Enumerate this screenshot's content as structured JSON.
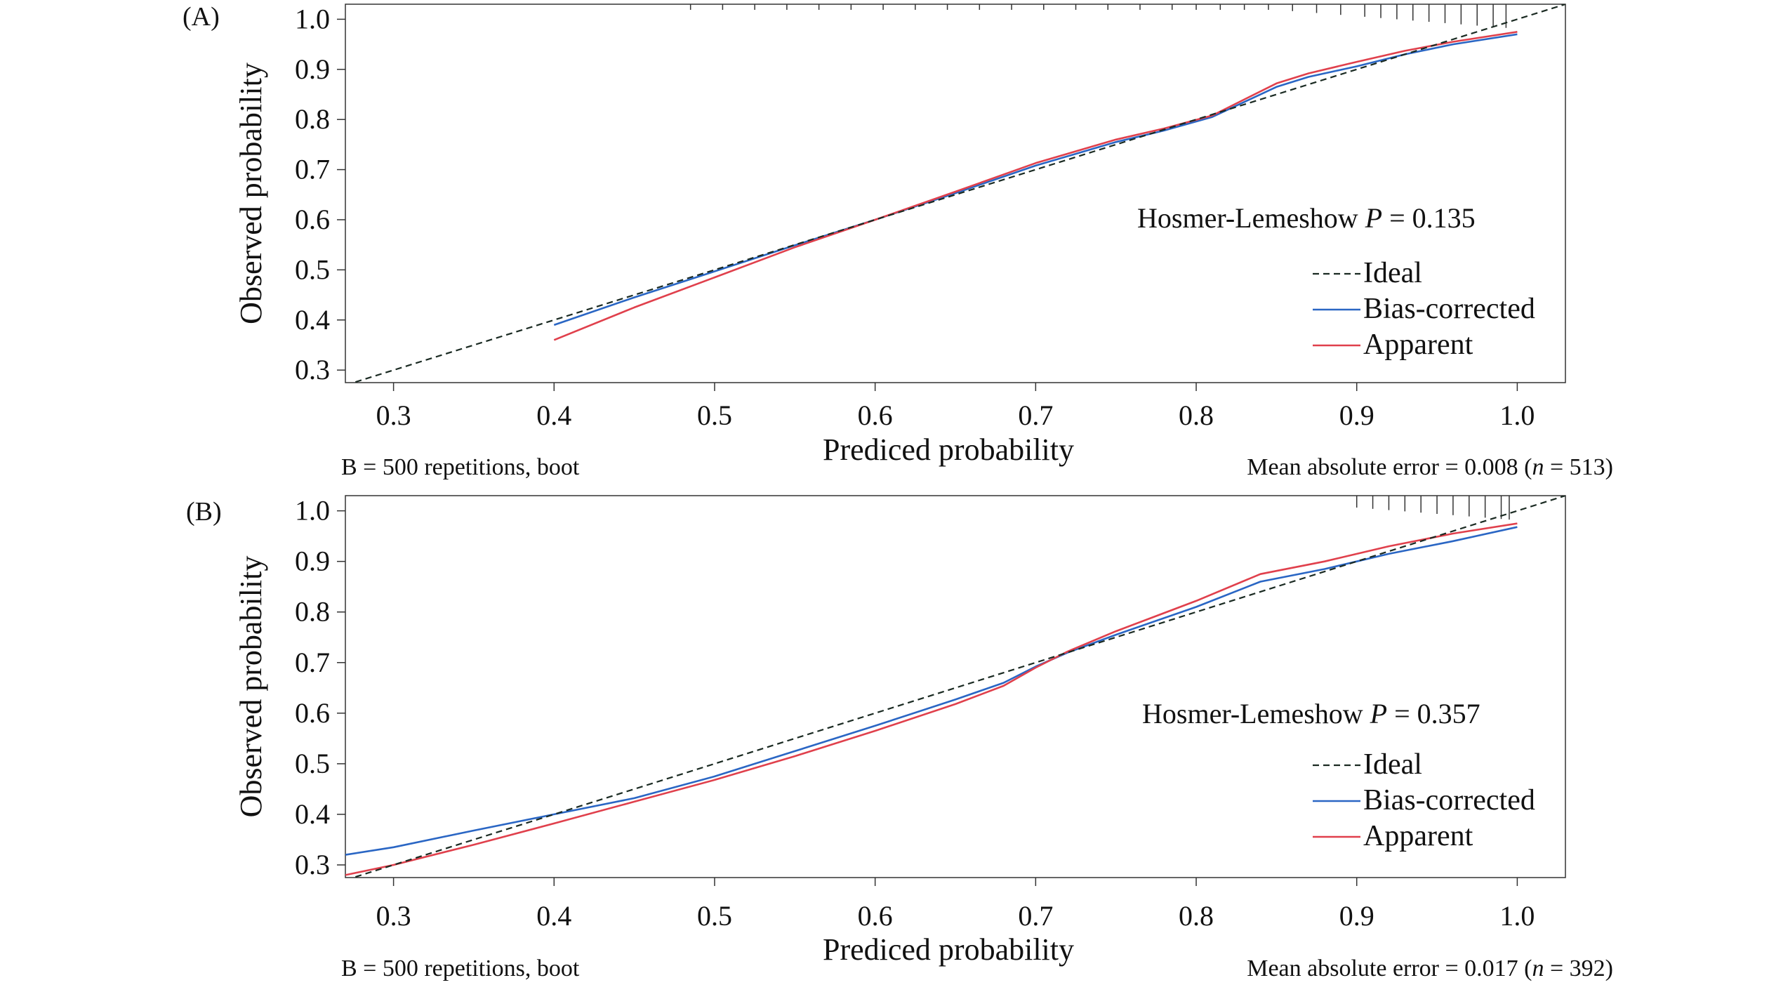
{
  "chart_data": [
    {
      "type": "line",
      "panel_label": "(A)",
      "xlabel": "Prediced probability",
      "ylabel": "Observed probability",
      "xlim": [
        0.27,
        1.03
      ],
      "ylim": [
        0.275,
        1.03
      ],
      "xticks": [
        "0.3",
        "0.4",
        "0.5",
        "0.6",
        "0.7",
        "0.8",
        "0.9",
        "1.0"
      ],
      "yticks": [
        "0.3",
        "0.4",
        "0.5",
        "0.6",
        "0.7",
        "0.8",
        "0.9",
        "1.0"
      ],
      "annotation": {
        "prefix": "Hosmer-Lemeshow ",
        "italic": "P",
        "suffix": " = 0.135"
      },
      "footer_left": "B = 500 repetitions, boot",
      "footer_right": {
        "prefix": "Mean absolute error = 0.008 (",
        "italic": "n",
        "suffix": " = 513)"
      },
      "legend": {
        "position": "bottom-right",
        "entries": [
          "Ideal",
          "Bias-corrected",
          "Apparent"
        ]
      },
      "series": [
        {
          "name": "Ideal",
          "style": "dashed",
          "color": "#1a2a22",
          "x": [
            0.27,
            1.03
          ],
          "y": [
            0.27,
            1.03
          ]
        },
        {
          "name": "Bias-corrected",
          "style": "solid",
          "color": "#2a66c4",
          "x": [
            0.4,
            0.45,
            0.5,
            0.55,
            0.6,
            0.65,
            0.7,
            0.75,
            0.78,
            0.81,
            0.83,
            0.85,
            0.87,
            0.9,
            0.93,
            0.96,
            1.0
          ],
          "y": [
            0.39,
            0.445,
            0.497,
            0.549,
            0.6,
            0.653,
            0.708,
            0.755,
            0.778,
            0.805,
            0.835,
            0.865,
            0.885,
            0.906,
            0.93,
            0.95,
            0.97
          ]
        },
        {
          "name": "Apparent",
          "style": "solid",
          "color": "#e0404c",
          "x": [
            0.4,
            0.45,
            0.5,
            0.55,
            0.6,
            0.65,
            0.7,
            0.75,
            0.78,
            0.81,
            0.83,
            0.85,
            0.87,
            0.9,
            0.93,
            0.96,
            1.0
          ],
          "y": [
            0.36,
            0.425,
            0.485,
            0.545,
            0.6,
            0.656,
            0.713,
            0.76,
            0.782,
            0.808,
            0.84,
            0.872,
            0.892,
            0.915,
            0.937,
            0.955,
            0.975
          ]
        }
      ],
      "rug": [
        0.485,
        0.505,
        0.525,
        0.545,
        0.565,
        0.585,
        0.605,
        0.625,
        0.645,
        0.665,
        0.685,
        0.705,
        0.725,
        0.745,
        0.765,
        0.785,
        0.8,
        0.815,
        0.83,
        0.845,
        0.86,
        0.875,
        0.89,
        0.905,
        0.915,
        0.925,
        0.935,
        0.945,
        0.955,
        0.965,
        0.975,
        0.985,
        0.993
      ]
    },
    {
      "type": "line",
      "panel_label": "(B)",
      "xlabel": "Prediced probability",
      "ylabel": "Observed probability",
      "xlim": [
        0.27,
        1.03
      ],
      "ylim": [
        0.275,
        1.03
      ],
      "xticks": [
        "0.3",
        "0.4",
        "0.5",
        "0.6",
        "0.7",
        "0.8",
        "0.9",
        "1.0"
      ],
      "yticks": [
        "0.3",
        "0.4",
        "0.5",
        "0.6",
        "0.7",
        "0.8",
        "0.9",
        "1.0"
      ],
      "annotation": {
        "prefix": "Hosmer-Lemeshow ",
        "italic": "P",
        "suffix": " = 0.357"
      },
      "footer_left": "B = 500 repetitions, boot",
      "footer_right": {
        "prefix": "Mean absolute error = 0.017 (",
        "italic": "n",
        "suffix": " = 392)"
      },
      "legend": {
        "position": "bottom-right",
        "entries": [
          "Ideal",
          "Bias-corrected",
          "Apparent"
        ]
      },
      "series": [
        {
          "name": "Ideal",
          "style": "dashed",
          "color": "#1a2a22",
          "x": [
            0.27,
            1.03
          ],
          "y": [
            0.27,
            1.03
          ]
        },
        {
          "name": "Bias-corrected",
          "style": "solid",
          "color": "#2a66c4",
          "x": [
            0.27,
            0.3,
            0.35,
            0.4,
            0.45,
            0.5,
            0.55,
            0.6,
            0.65,
            0.68,
            0.7,
            0.72,
            0.75,
            0.8,
            0.84,
            0.88,
            0.92,
            0.96,
            1.0
          ],
          "y": [
            0.32,
            0.335,
            0.368,
            0.4,
            0.432,
            0.475,
            0.525,
            0.575,
            0.627,
            0.66,
            0.692,
            0.72,
            0.755,
            0.81,
            0.86,
            0.885,
            0.915,
            0.94,
            0.968
          ]
        },
        {
          "name": "Apparent",
          "style": "solid",
          "color": "#e0404c",
          "x": [
            0.27,
            0.3,
            0.35,
            0.4,
            0.45,
            0.5,
            0.55,
            0.6,
            0.65,
            0.68,
            0.7,
            0.72,
            0.75,
            0.8,
            0.84,
            0.88,
            0.92,
            0.96,
            1.0
          ],
          "y": [
            0.28,
            0.3,
            0.34,
            0.382,
            0.425,
            0.468,
            0.515,
            0.565,
            0.618,
            0.654,
            0.69,
            0.722,
            0.762,
            0.822,
            0.875,
            0.9,
            0.93,
            0.955,
            0.975
          ]
        }
      ],
      "rug": [
        0.9,
        0.91,
        0.92,
        0.93,
        0.94,
        0.95,
        0.96,
        0.97,
        0.98,
        0.99,
        0.995
      ]
    }
  ]
}
